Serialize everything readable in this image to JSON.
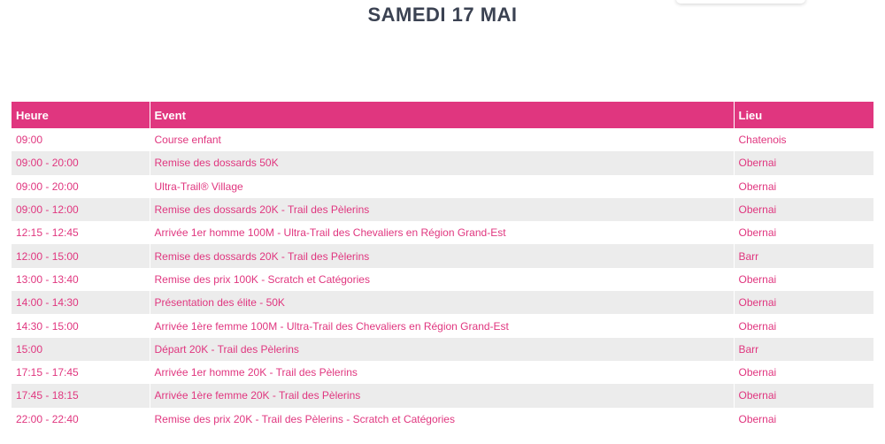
{
  "title": "SAMEDI 17 MAI",
  "table": {
    "headers": [
      "Heure",
      "Event",
      "Lieu"
    ],
    "rows": [
      {
        "heure": "09:00",
        "event": "Course enfant",
        "lieu": "Chatenois"
      },
      {
        "heure": "09:00 - 20:00",
        "event": "Remise des dossards 50K",
        "lieu": "Obernai"
      },
      {
        "heure": "09:00 - 20:00",
        "event": "Ultra-Trail® Village",
        "lieu": "Obernai"
      },
      {
        "heure": "09:00 - 12:00",
        "event": "Remise des dossards 20K - Trail des Pèlerins",
        "lieu": "Obernai"
      },
      {
        "heure": "12:15 - 12:45",
        "event": "Arrivée 1er homme 100M - Ultra-Trail des Chevaliers en Région Grand-Est",
        "lieu": "Obernai"
      },
      {
        "heure": "12:00 - 15:00",
        "event": "Remise des dossards 20K - Trail des Pèlerins",
        "lieu": "Barr"
      },
      {
        "heure": "13:00 - 13:40",
        "event": "Remise des prix 100K - Scratch et Catégories",
        "lieu": "Obernai"
      },
      {
        "heure": "14:00 - 14:30",
        "event": "Présentation des élite - 50K",
        "lieu": "Obernai"
      },
      {
        "heure": "14:30 - 15:00",
        "event": "Arrivée 1ère femme 100M - Ultra-Trail des Chevaliers en Région Grand-Est",
        "lieu": "Obernai"
      },
      {
        "heure": "15:00",
        "event": "Départ 20K - Trail des Pèlerins",
        "lieu": "Barr"
      },
      {
        "heure": "17:15 - 17:45",
        "event": "Arrivée 1er homme 20K - Trail des Pèlerins",
        "lieu": "Obernai"
      },
      {
        "heure": "17:45 - 18:15",
        "event": "Arrivée 1ère femme 20K - Trail des Pèlerins",
        "lieu": "Obernai"
      },
      {
        "heure": "22:00 - 22:40",
        "event": "Remise des prix 20K - Trail des Pèlerins - Scratch et Catégories",
        "lieu": "Obernai"
      }
    ]
  },
  "colors": {
    "accent": "#e0367f",
    "title": "#3b4252",
    "stripe": "#ececec"
  }
}
